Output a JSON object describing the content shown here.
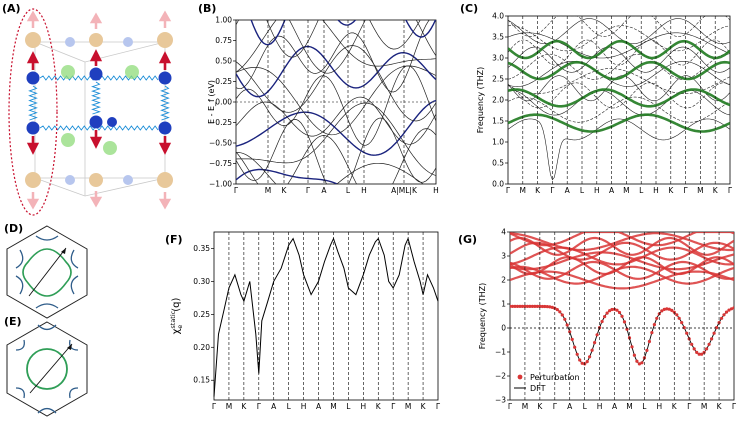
{
  "figure": {
    "panel_labels": [
      "(A)",
      "(B)",
      "(C)",
      "(D)",
      "(E)",
      "(F)",
      "(G)"
    ]
  },
  "colors": {
    "blue_atom": "#1f3fbf",
    "tan_atom": "#e8c89a",
    "pale_blue_atom": "#b7c6ee",
    "green_atom": "#8fdc7a",
    "red_arrow": "#c8102e",
    "pink_arrow": "#f3b3b8",
    "spring": "#1e8fd8",
    "band_black": "#222222",
    "band_blue": "#1a237e",
    "phonon_green": "#1f7a1f",
    "perturbation_red": "#d93636",
    "fs_blue": "#2f5d8a",
    "fs_green": "#2f9e57"
  },
  "chart_data": [
    {
      "id": "B",
      "type": "line",
      "title": "",
      "xlabel": "",
      "ylabel": "E - E_f (eV)",
      "ylim": [
        -1.0,
        1.0
      ],
      "yticks": [
        -1.0,
        -0.75,
        -0.5,
        -0.25,
        0.0,
        0.25,
        0.5,
        0.75,
        1.0
      ],
      "ytick_labels": [
        "−1.00",
        "−0.75",
        "−0.50",
        "−0.25",
        "0.00",
        "0.25",
        "0.50",
        "0.75",
        "1.00"
      ],
      "path_labels": [
        "Γ",
        "M",
        "K",
        "Γ",
        "A",
        "L",
        "H",
        "A|ML|K",
        "H"
      ],
      "reference_line": 0.0
    },
    {
      "id": "C",
      "type": "scatter",
      "title": "",
      "xlabel": "",
      "ylabel": "Frequency (THZ)",
      "ylim": [
        0.0,
        4.0
      ],
      "yticks": [
        0.0,
        0.5,
        1.0,
        1.5,
        2.0,
        2.5,
        3.0,
        3.5,
        4.0
      ],
      "ytick_labels": [
        "0.0",
        "0.5",
        "1.0",
        "1.5",
        "2.0",
        "2.5",
        "3.0",
        "3.5",
        "4.0"
      ],
      "path_labels": [
        "Γ",
        "M",
        "K",
        "Γ",
        "A",
        "L",
        "H",
        "A",
        "M",
        "L",
        "H",
        "K",
        "Γ̄",
        "M",
        "K",
        "Γ̄"
      ]
    },
    {
      "id": "F",
      "type": "line",
      "title": "",
      "xlabel": "",
      "ylabel": "χ",
      "ylabel_sup": "static",
      "ylabel_sub": "e",
      "ylabel_tail": "(q)",
      "ylim": [
        0.12,
        0.375
      ],
      "yticks": [
        0.15,
        0.2,
        0.25,
        0.3,
        0.35
      ],
      "ytick_labels": [
        "0.15",
        "0.20",
        "0.25",
        "0.30",
        "0.35"
      ],
      "path_labels": [
        "Γ",
        "M",
        "K",
        "Γ",
        "A",
        "L",
        "H",
        "A",
        "M",
        "L",
        "H",
        "K",
        "Γ̄",
        "M",
        "K",
        "Γ̄"
      ],
      "x": [
        0,
        0.3,
        0.7,
        1.0,
        1.4,
        1.8,
        2.0,
        2.4,
        2.8,
        3.0,
        3.2,
        3.6,
        4.0,
        4.5,
        5.0,
        5.3,
        5.7,
        6.0,
        6.5,
        7.0,
        7.4,
        7.8,
        8.0,
        8.3,
        8.7,
        9.0,
        9.5,
        10.0,
        10.4,
        10.8,
        11.0,
        11.4,
        11.7,
        12.0,
        12.4,
        12.8,
        13.0,
        13.4,
        13.8,
        14.0,
        14.3,
        14.7,
        15.0
      ],
      "values": [
        0.125,
        0.22,
        0.26,
        0.29,
        0.31,
        0.28,
        0.27,
        0.3,
        0.22,
        0.16,
        0.24,
        0.27,
        0.3,
        0.32,
        0.355,
        0.365,
        0.34,
        0.31,
        0.28,
        0.3,
        0.33,
        0.355,
        0.365,
        0.345,
        0.32,
        0.29,
        0.28,
        0.31,
        0.34,
        0.36,
        0.365,
        0.34,
        0.3,
        0.29,
        0.31,
        0.355,
        0.365,
        0.33,
        0.3,
        0.28,
        0.31,
        0.29,
        0.27
      ]
    },
    {
      "id": "G",
      "type": "scatter",
      "title": "",
      "xlabel": "",
      "ylabel": "Frequency (THZ)",
      "ylim": [
        -3,
        4
      ],
      "yticks": [
        -3,
        -2,
        -1,
        0,
        1,
        2,
        3,
        4
      ],
      "ytick_labels": [
        "−3",
        "−2",
        "−1",
        "0",
        "1",
        "2",
        "3",
        "4"
      ],
      "path_labels": [
        "Γ",
        "M",
        "K",
        "Γ",
        "A",
        "L",
        "H",
        "A",
        "M",
        "L",
        "H",
        "K",
        "Γ̄",
        "M",
        "K",
        "Γ̄"
      ],
      "legend": [
        "Perturbation",
        "DFT"
      ],
      "legend_position": "lower-left"
    }
  ]
}
